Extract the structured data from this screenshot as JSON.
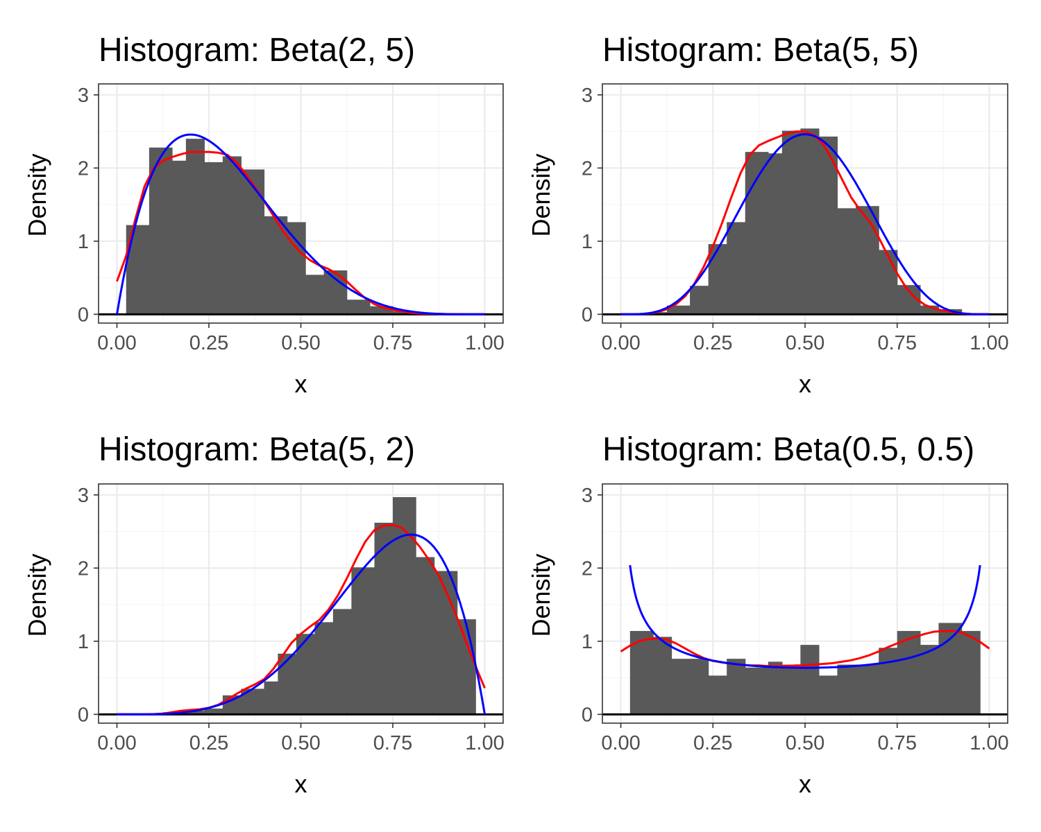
{
  "colors": {
    "bars": "#595959",
    "kde_line": "#ff0000",
    "theoretical_line": "#0000ff",
    "zero_line": "#000000",
    "grid": "#ebebeb"
  },
  "chart_data": [
    {
      "type": "bar",
      "title": "Histogram: Beta(2, 5)",
      "xlabel": "x",
      "ylabel": "Density",
      "xlim": [
        -0.05,
        1.05
      ],
      "ylim": [
        -0.12,
        3.15
      ],
      "x_ticks": [
        "0.00",
        "0.25",
        "0.50",
        "0.75",
        "1.00"
      ],
      "y_ticks": [
        "0",
        "1",
        "2",
        "3"
      ],
      "grid": true,
      "bin_width": 0.0625,
      "bins": [
        {
          "x0": 0.025,
          "x1": 0.0875,
          "density": 1.22
        },
        {
          "x0": 0.0875,
          "x1": 0.15,
          "density": 2.28
        },
        {
          "x0": 0.15,
          "x1": 0.1875,
          "density": 2.1
        },
        {
          "x0": 0.1875,
          "x1": 0.2375,
          "density": 2.4
        },
        {
          "x0": 0.2375,
          "x1": 0.2875,
          "density": 2.08
        },
        {
          "x0": 0.2875,
          "x1": 0.3375,
          "density": 2.16
        },
        {
          "x0": 0.3375,
          "x1": 0.4,
          "density": 1.98
        },
        {
          "x0": 0.4,
          "x1": 0.4625,
          "density": 1.34
        },
        {
          "x0": 0.4625,
          "x1": 0.5125,
          "density": 1.26
        },
        {
          "x0": 0.5125,
          "x1": 0.5625,
          "density": 0.54
        },
        {
          "x0": 0.5625,
          "x1": 0.625,
          "density": 0.6
        },
        {
          "x0": 0.625,
          "x1": 0.6875,
          "density": 0.2
        },
        {
          "x0": 0.6875,
          "x1": 0.75,
          "density": 0.11
        },
        {
          "x0": 0.75,
          "x1": 0.8125,
          "density": 0.04
        }
      ],
      "series": [
        {
          "style": "red",
          "x": [
            0.0,
            0.025,
            0.05,
            0.075,
            0.1,
            0.125,
            0.15,
            0.175,
            0.2,
            0.225,
            0.25,
            0.275,
            0.3,
            0.325,
            0.35,
            0.375,
            0.4,
            0.425,
            0.45,
            0.475,
            0.5,
            0.525,
            0.55,
            0.575,
            0.6,
            0.625,
            0.65,
            0.675,
            0.7,
            0.725,
            0.75,
            0.775,
            0.8,
            0.825,
            0.85,
            0.875,
            0.9,
            0.925,
            0.95,
            0.975,
            1.0
          ],
          "y": [
            0.45,
            0.8,
            1.3,
            1.75,
            2.0,
            2.1,
            2.15,
            2.19,
            2.22,
            2.22,
            2.22,
            2.21,
            2.18,
            2.08,
            1.92,
            1.74,
            1.55,
            1.35,
            1.15,
            0.98,
            0.84,
            0.74,
            0.67,
            0.62,
            0.55,
            0.45,
            0.33,
            0.22,
            0.14,
            0.09,
            0.06,
            0.04,
            0.02,
            0.012,
            0.008,
            0.005,
            0.003,
            0.002,
            0.001,
            0.0005,
            0.0
          ]
        },
        {
          "style": "blue",
          "curve": "beta",
          "alpha": 2,
          "beta": 5,
          "x_from": 0,
          "x_to": 1
        }
      ]
    },
    {
      "type": "bar",
      "title": "Histogram: Beta(5, 5)",
      "xlabel": "x",
      "ylabel": "Density",
      "xlim": [
        -0.05,
        1.05
      ],
      "ylim": [
        -0.12,
        3.15
      ],
      "x_ticks": [
        "0.00",
        "0.25",
        "0.50",
        "0.75",
        "1.00"
      ],
      "y_ticks": [
        "0",
        "1",
        "2",
        "3"
      ],
      "grid": true,
      "bin_width": 0.0625,
      "bins": [
        {
          "x0": 0.075,
          "x1": 0.125,
          "density": 0.03
        },
        {
          "x0": 0.125,
          "x1": 0.1875,
          "density": 0.12
        },
        {
          "x0": 0.1875,
          "x1": 0.2375,
          "density": 0.39
        },
        {
          "x0": 0.2375,
          "x1": 0.2875,
          "density": 0.96
        },
        {
          "x0": 0.2875,
          "x1": 0.3375,
          "density": 1.26
        },
        {
          "x0": 0.3375,
          "x1": 0.4,
          "density": 2.22
        },
        {
          "x0": 0.4,
          "x1": 0.4375,
          "density": 2.2
        },
        {
          "x0": 0.4375,
          "x1": 0.4875,
          "density": 2.51
        },
        {
          "x0": 0.4875,
          "x1": 0.5375,
          "density": 2.54
        },
        {
          "x0": 0.5375,
          "x1": 0.5875,
          "density": 2.43
        },
        {
          "x0": 0.5875,
          "x1": 0.6375,
          "density": 1.45
        },
        {
          "x0": 0.6375,
          "x1": 0.7,
          "density": 1.48
        },
        {
          "x0": 0.7,
          "x1": 0.75,
          "density": 0.88
        },
        {
          "x0": 0.75,
          "x1": 0.8125,
          "density": 0.4
        },
        {
          "x0": 0.8125,
          "x1": 0.8625,
          "density": 0.12
        },
        {
          "x0": 0.8625,
          "x1": 0.925,
          "density": 0.07
        }
      ],
      "series": [
        {
          "style": "red",
          "x": [
            0.0,
            0.025,
            0.05,
            0.075,
            0.1,
            0.125,
            0.15,
            0.175,
            0.2,
            0.225,
            0.25,
            0.275,
            0.3,
            0.325,
            0.35,
            0.375,
            0.4,
            0.425,
            0.45,
            0.475,
            0.5,
            0.525,
            0.55,
            0.575,
            0.6,
            0.625,
            0.65,
            0.675,
            0.7,
            0.725,
            0.75,
            0.775,
            0.8,
            0.825,
            0.85,
            0.875,
            0.9,
            0.925,
            0.95,
            0.975,
            1.0
          ],
          "y": [
            0.0,
            0.001,
            0.003,
            0.01,
            0.03,
            0.07,
            0.14,
            0.25,
            0.42,
            0.65,
            0.93,
            1.25,
            1.6,
            1.93,
            2.18,
            2.31,
            2.37,
            2.42,
            2.47,
            2.5,
            2.5,
            2.45,
            2.32,
            2.1,
            1.85,
            1.6,
            1.42,
            1.27,
            1.05,
            0.8,
            0.56,
            0.36,
            0.22,
            0.13,
            0.08,
            0.05,
            0.03,
            0.012,
            0.004,
            0.001,
            0.0
          ]
        },
        {
          "style": "blue",
          "curve": "beta",
          "alpha": 5,
          "beta": 5,
          "x_from": 0,
          "x_to": 1
        }
      ]
    },
    {
      "type": "bar",
      "title": "Histogram: Beta(5, 2)",
      "xlabel": "x",
      "ylabel": "Density",
      "xlim": [
        -0.05,
        1.05
      ],
      "ylim": [
        -0.12,
        3.15
      ],
      "x_ticks": [
        "0.00",
        "0.25",
        "0.50",
        "0.75",
        "1.00"
      ],
      "y_ticks": [
        "0",
        "1",
        "2",
        "3"
      ],
      "grid": true,
      "bin_width": 0.0625,
      "bins": [
        {
          "x0": 0.125,
          "x1": 0.1875,
          "density": 0.03
        },
        {
          "x0": 0.1875,
          "x1": 0.2375,
          "density": 0.05
        },
        {
          "x0": 0.2375,
          "x1": 0.2875,
          "density": 0.08
        },
        {
          "x0": 0.2875,
          "x1": 0.3375,
          "density": 0.26
        },
        {
          "x0": 0.3375,
          "x1": 0.4,
          "density": 0.35
        },
        {
          "x0": 0.4,
          "x1": 0.4375,
          "density": 0.45
        },
        {
          "x0": 0.4375,
          "x1": 0.4875,
          "density": 0.83
        },
        {
          "x0": 0.4875,
          "x1": 0.5375,
          "density": 1.1
        },
        {
          "x0": 0.5375,
          "x1": 0.5875,
          "density": 1.26
        },
        {
          "x0": 0.5875,
          "x1": 0.6375,
          "density": 1.44
        },
        {
          "x0": 0.6375,
          "x1": 0.7,
          "density": 2.01
        },
        {
          "x0": 0.7,
          "x1": 0.75,
          "density": 2.62
        },
        {
          "x0": 0.75,
          "x1": 0.8125,
          "density": 2.97
        },
        {
          "x0": 0.8125,
          "x1": 0.8625,
          "density": 2.15
        },
        {
          "x0": 0.8625,
          "x1": 0.925,
          "density": 1.96
        },
        {
          "x0": 0.925,
          "x1": 0.975,
          "density": 1.3
        }
      ],
      "series": [
        {
          "style": "red",
          "x": [
            0.0,
            0.025,
            0.05,
            0.075,
            0.1,
            0.125,
            0.15,
            0.175,
            0.2,
            0.225,
            0.25,
            0.275,
            0.3,
            0.325,
            0.35,
            0.375,
            0.4,
            0.425,
            0.45,
            0.475,
            0.5,
            0.525,
            0.55,
            0.575,
            0.6,
            0.625,
            0.65,
            0.675,
            0.7,
            0.725,
            0.75,
            0.775,
            0.8,
            0.825,
            0.85,
            0.875,
            0.9,
            0.925,
            0.95,
            0.975,
            1.0
          ],
          "y": [
            0.0,
            0.0,
            0.0,
            0.001,
            0.003,
            0.01,
            0.03,
            0.05,
            0.06,
            0.07,
            0.09,
            0.13,
            0.2,
            0.28,
            0.35,
            0.41,
            0.48,
            0.62,
            0.8,
            0.98,
            1.1,
            1.2,
            1.29,
            1.43,
            1.62,
            1.86,
            2.12,
            2.36,
            2.52,
            2.58,
            2.59,
            2.55,
            2.43,
            2.28,
            2.1,
            1.9,
            1.62,
            1.32,
            0.98,
            0.66,
            0.36
          ]
        },
        {
          "style": "blue",
          "curve": "beta",
          "alpha": 5,
          "beta": 2,
          "x_from": 0,
          "x_to": 1
        }
      ]
    },
    {
      "type": "bar",
      "title": "Histogram: Beta(0.5, 0.5)",
      "xlabel": "x",
      "ylabel": "Density",
      "xlim": [
        -0.05,
        1.05
      ],
      "ylim": [
        -0.12,
        3.15
      ],
      "x_ticks": [
        "0.00",
        "0.25",
        "0.50",
        "0.75",
        "1.00"
      ],
      "y_ticks": [
        "0",
        "1",
        "2",
        "3"
      ],
      "grid": true,
      "bin_width": 0.0625,
      "bins": [
        {
          "x0": 0.025,
          "x1": 0.0875,
          "density": 1.14
        },
        {
          "x0": 0.0875,
          "x1": 0.1375,
          "density": 1.06
        },
        {
          "x0": 0.1375,
          "x1": 0.1875,
          "density": 0.76
        },
        {
          "x0": 0.1875,
          "x1": 0.2375,
          "density": 0.76
        },
        {
          "x0": 0.2375,
          "x1": 0.2875,
          "density": 0.53
        },
        {
          "x0": 0.2875,
          "x1": 0.3375,
          "density": 0.76
        },
        {
          "x0": 0.3375,
          "x1": 0.4,
          "density": 0.64
        },
        {
          "x0": 0.4,
          "x1": 0.4375,
          "density": 0.72
        },
        {
          "x0": 0.4375,
          "x1": 0.4875,
          "density": 0.68
        },
        {
          "x0": 0.4875,
          "x1": 0.5375,
          "density": 0.95
        },
        {
          "x0": 0.5375,
          "x1": 0.5875,
          "density": 0.53
        },
        {
          "x0": 0.5875,
          "x1": 0.6375,
          "density": 0.68
        },
        {
          "x0": 0.6375,
          "x1": 0.7,
          "density": 0.68
        },
        {
          "x0": 0.7,
          "x1": 0.75,
          "density": 0.91
        },
        {
          "x0": 0.75,
          "x1": 0.8125,
          "density": 1.14
        },
        {
          "x0": 0.8125,
          "x1": 0.8625,
          "density": 0.95
        },
        {
          "x0": 0.8625,
          "x1": 0.925,
          "density": 1.25
        },
        {
          "x0": 0.925,
          "x1": 0.975,
          "density": 1.14
        }
      ],
      "series": [
        {
          "style": "red",
          "x": [
            0.0,
            0.025,
            0.05,
            0.075,
            0.1,
            0.125,
            0.15,
            0.175,
            0.2,
            0.225,
            0.25,
            0.275,
            0.3,
            0.325,
            0.35,
            0.375,
            0.4,
            0.425,
            0.45,
            0.475,
            0.5,
            0.525,
            0.55,
            0.575,
            0.6,
            0.625,
            0.65,
            0.675,
            0.7,
            0.725,
            0.75,
            0.775,
            0.8,
            0.825,
            0.85,
            0.875,
            0.9,
            0.925,
            0.95,
            0.975,
            1.0
          ],
          "y": [
            0.86,
            0.94,
            1.0,
            1.03,
            1.04,
            1.02,
            0.97,
            0.9,
            0.83,
            0.77,
            0.73,
            0.71,
            0.69,
            0.68,
            0.67,
            0.67,
            0.66,
            0.66,
            0.66,
            0.67,
            0.67,
            0.68,
            0.69,
            0.7,
            0.72,
            0.74,
            0.77,
            0.81,
            0.86,
            0.92,
            0.97,
            1.02,
            1.06,
            1.1,
            1.13,
            1.14,
            1.14,
            1.12,
            1.06,
            0.99,
            0.9
          ]
        },
        {
          "style": "blue",
          "curve": "beta",
          "alpha": 0.5,
          "beta": 0.5,
          "x_from": 0.025,
          "x_to": 0.975
        }
      ]
    }
  ]
}
